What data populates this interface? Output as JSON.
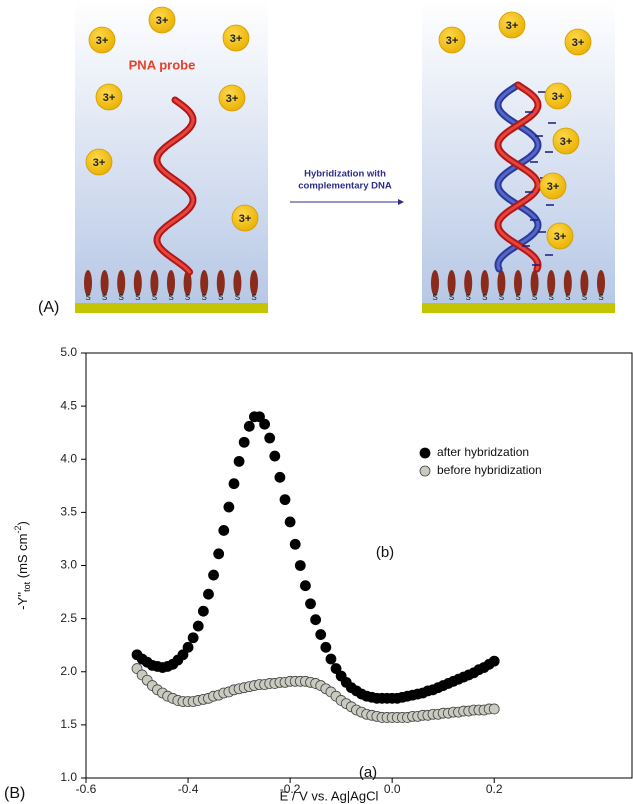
{
  "panel_a": {
    "label": "(A)",
    "ion_label": "3+",
    "probe_label": "PNA probe",
    "arrow_label": [
      "Hybridization with",
      "complementary DNA"
    ],
    "surface_label": "S"
  },
  "chart_data": {
    "type": "scatter",
    "panel_label": "(B)",
    "xlabel": "E / V vs. Ag|AgCl",
    "ylabel": [
      "-Y''",
      "tot",
      " (mS cm",
      "-2",
      ")"
    ],
    "xlim": [
      -0.6,
      0.47
    ],
    "ylim": [
      1,
      5
    ],
    "xticks": [
      -0.6,
      -0.4,
      -0.2,
      {
        "value": 0,
        "label": "0.0"
      },
      0.2
    ],
    "yticks": [
      {
        "value": 1,
        "label": "1.0"
      },
      1.5,
      {
        "value": 2,
        "label": "2.0"
      },
      2.5,
      {
        "value": 3,
        "label": "3.0"
      },
      3.5,
      {
        "value": 4,
        "label": "4.0"
      },
      4.5,
      {
        "value": 5,
        "label": "5.0"
      }
    ],
    "x": [
      -0.5,
      -0.49,
      -0.48,
      -0.47,
      -0.46,
      -0.45,
      -0.44,
      -0.43,
      -0.42,
      -0.41,
      -0.4,
      -0.39,
      -0.38,
      -0.37,
      -0.36,
      -0.35,
      -0.34,
      -0.33,
      -0.32,
      -0.31,
      -0.3,
      -0.29,
      -0.28,
      -0.27,
      -0.26,
      -0.25,
      -0.24,
      -0.23,
      -0.22,
      -0.21,
      -0.2,
      -0.19,
      -0.18,
      -0.17,
      -0.16,
      -0.15,
      -0.14,
      -0.13,
      -0.12,
      -0.11,
      -0.1,
      -0.09,
      -0.08,
      -0.07,
      -0.06,
      -0.05,
      -0.04,
      -0.03,
      -0.02,
      -0.01,
      0,
      0.01,
      0.02,
      0.03,
      0.04,
      0.05,
      0.06,
      0.07,
      0.08,
      0.09,
      0.1,
      0.11,
      0.12,
      0.13,
      0.14,
      0.15,
      0.16,
      0.17,
      0.18,
      0.19,
      0.2
    ],
    "series": [
      {
        "name": "after hybridzation",
        "color": "#000000",
        "values": [
          2.16,
          2.12,
          2.09,
          2.06,
          2.05,
          2.04,
          2.05,
          2.07,
          2.11,
          2.16,
          2.23,
          2.32,
          2.43,
          2.57,
          2.73,
          2.91,
          3.11,
          3.33,
          3.55,
          3.77,
          3.98,
          4.16,
          4.31,
          4.4,
          4.4,
          4.33,
          4.2,
          4.03,
          3.83,
          3.62,
          3.41,
          3.2,
          3.0,
          2.81,
          2.64,
          2.49,
          2.35,
          2.23,
          2.12,
          2.03,
          1.96,
          1.9,
          1.85,
          1.82,
          1.79,
          1.77,
          1.76,
          1.75,
          1.75,
          1.75,
          1.75,
          1.75,
          1.76,
          1.77,
          1.78,
          1.79,
          1.8,
          1.82,
          1.83,
          1.85,
          1.87,
          1.89,
          1.91,
          1.93,
          1.95,
          1.97,
          1.99,
          2.02,
          2.04,
          2.07,
          2.1
        ]
      },
      {
        "name": "before hybridization",
        "color": "#c8cbbf",
        "values": [
          2.03,
          1.97,
          1.92,
          1.87,
          1.83,
          1.8,
          1.77,
          1.75,
          1.73,
          1.72,
          1.72,
          1.72,
          1.73,
          1.74,
          1.75,
          1.77,
          1.78,
          1.8,
          1.81,
          1.83,
          1.84,
          1.85,
          1.86,
          1.87,
          1.88,
          1.88,
          1.89,
          1.89,
          1.9,
          1.9,
          1.91,
          1.91,
          1.91,
          1.91,
          1.9,
          1.89,
          1.87,
          1.84,
          1.81,
          1.77,
          1.73,
          1.7,
          1.67,
          1.64,
          1.62,
          1.6,
          1.59,
          1.58,
          1.57,
          1.57,
          1.57,
          1.57,
          1.57,
          1.57,
          1.58,
          1.58,
          1.59,
          1.59,
          1.6,
          1.6,
          1.61,
          1.61,
          1.62,
          1.62,
          1.63,
          1.63,
          1.64,
          1.64,
          1.64,
          1.65,
          1.65
        ]
      }
    ],
    "annotations": [
      "(b)",
      "(a)"
    ]
  }
}
